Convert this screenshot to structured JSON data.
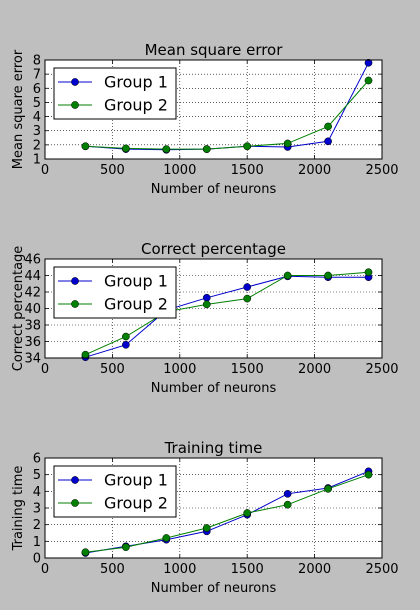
{
  "chart_data": [
    {
      "type": "line",
      "title": "Mean square error",
      "xlabel": "Number of neurons",
      "ylabel": "Mean square error",
      "xlim": [
        0,
        2500
      ],
      "ylim": [
        1,
        8
      ],
      "xticks": [
        0,
        500,
        1000,
        1500,
        2000,
        2500
      ],
      "yticks": [
        1,
        2,
        3,
        4,
        5,
        6,
        7,
        8
      ],
      "grid": true,
      "legend": "upper-left",
      "x": [
        300,
        600,
        900,
        1200,
        1500,
        1800,
        2100,
        2400
      ],
      "series": [
        {
          "name": "Group 1",
          "color": "#0000cc",
          "values": [
            1.9,
            1.7,
            1.65,
            1.7,
            1.9,
            1.85,
            2.25,
            7.8
          ]
        },
        {
          "name": "Group 2",
          "color": "#007f00",
          "values": [
            1.9,
            1.75,
            1.7,
            1.7,
            1.9,
            2.1,
            3.3,
            6.55
          ]
        }
      ]
    },
    {
      "type": "line",
      "title": "Correct percentage",
      "xlabel": "Number of neurons",
      "ylabel": "Correct percentage",
      "xlim": [
        0,
        2500
      ],
      "ylim": [
        34,
        46
      ],
      "xticks": [
        0,
        500,
        1000,
        1500,
        2000,
        2500
      ],
      "yticks": [
        34,
        36,
        38,
        40,
        42,
        44,
        46
      ],
      "grid": true,
      "legend": "upper-left",
      "x": [
        300,
        600,
        900,
        1200,
        1500,
        1800,
        2100,
        2400
      ],
      "series": [
        {
          "name": "Group 1",
          "color": "#0000cc",
          "values": [
            34.1,
            35.6,
            39.8,
            41.3,
            42.6,
            43.9,
            43.8,
            43.8
          ]
        },
        {
          "name": "Group 2",
          "color": "#007f00",
          "values": [
            34.4,
            36.6,
            39.6,
            40.5,
            41.2,
            44.0,
            44.0,
            44.4
          ]
        }
      ]
    },
    {
      "type": "line",
      "title": "Training time",
      "xlabel": "Number of neurons",
      "ylabel": "Training time",
      "xlim": [
        0,
        2500
      ],
      "ylim": [
        0,
        6
      ],
      "xticks": [
        0,
        500,
        1000,
        1500,
        2000,
        2500
      ],
      "yticks": [
        0,
        1,
        2,
        3,
        4,
        5,
        6
      ],
      "grid": true,
      "legend": "upper-left",
      "x": [
        300,
        600,
        900,
        1200,
        1500,
        1800,
        2100,
        2400
      ],
      "series": [
        {
          "name": "Group 1",
          "color": "#0000cc",
          "values": [
            0.3,
            0.7,
            1.1,
            1.6,
            2.6,
            3.85,
            4.2,
            5.2
          ]
        },
        {
          "name": "Group 2",
          "color": "#007f00",
          "values": [
            0.35,
            0.65,
            1.2,
            1.8,
            2.7,
            3.2,
            4.15,
            5.0
          ]
        }
      ]
    }
  ]
}
